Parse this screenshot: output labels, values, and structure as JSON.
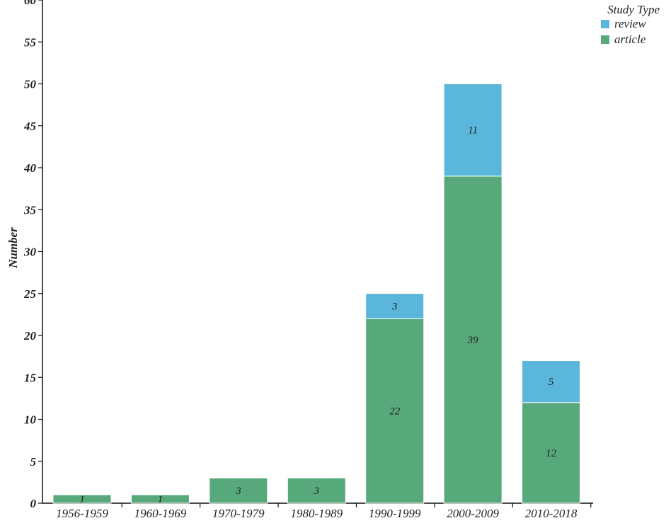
{
  "chart_data": {
    "type": "bar",
    "stacked": true,
    "ylabel": "Number",
    "ylim": [
      0,
      60
    ],
    "ytick_step": 5,
    "categories": [
      "1956-1959",
      "1960-1969",
      "1970-1979",
      "1980-1989",
      "1990-1999",
      "2000-2009",
      "2010-2018"
    ],
    "series": [
      {
        "name": "article",
        "color": "#57a87b",
        "values": [
          1,
          1,
          3,
          3,
          22,
          39,
          12
        ]
      },
      {
        "name": "review",
        "color": "#5ab6da",
        "values": [
          0,
          0,
          0,
          0,
          3,
          11,
          5
        ]
      }
    ],
    "legend": {
      "title": "Study Type",
      "position": "top-right",
      "order": [
        "review",
        "article"
      ]
    },
    "grid": false
  }
}
